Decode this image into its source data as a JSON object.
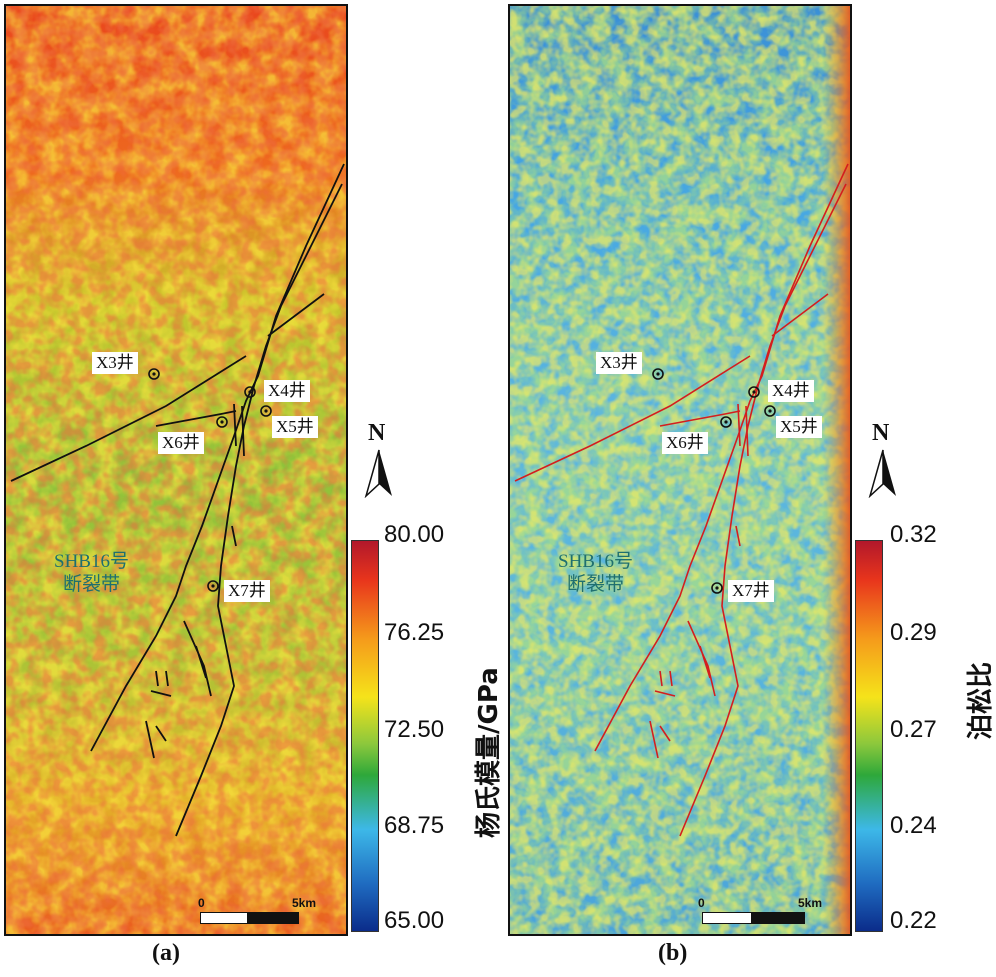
{
  "panels": [
    {
      "id": "a",
      "caption": "(a)",
      "colorbar": {
        "ticks": [
          "80.00",
          "76.25",
          "72.50",
          "68.75",
          "65.00"
        ],
        "title": "杨氏模量/GPa",
        "colors": [
          "#b2182b",
          "#e8351c",
          "#f59a1b",
          "#f5e31a",
          "#8cc83c",
          "#2ea83a",
          "#3db8e8",
          "#1f6bc0",
          "#0b2c8a"
        ]
      },
      "fault_color": "#111111"
    },
    {
      "id": "b",
      "caption": "(b)",
      "colorbar": {
        "ticks": [
          "0.32",
          "0.29",
          "0.27",
          "0.24",
          "0.22"
        ],
        "title": "泊松比",
        "colors": [
          "#b2182b",
          "#e8351c",
          "#f59a1b",
          "#f5e31a",
          "#8cc83c",
          "#2ea83a",
          "#3db8e8",
          "#1f6bc0",
          "#0b2c8a"
        ]
      },
      "fault_color": "#d41e1e"
    }
  ],
  "wells": {
    "x3": "X3井",
    "x4": "X4井",
    "x5": "X5井",
    "x6": "X6井",
    "x7": "X7井"
  },
  "fault_zone_label": [
    "SHB16号",
    "断裂带"
  ],
  "scalebar": {
    "start": "0",
    "end": "5km"
  },
  "north_label": "N"
}
